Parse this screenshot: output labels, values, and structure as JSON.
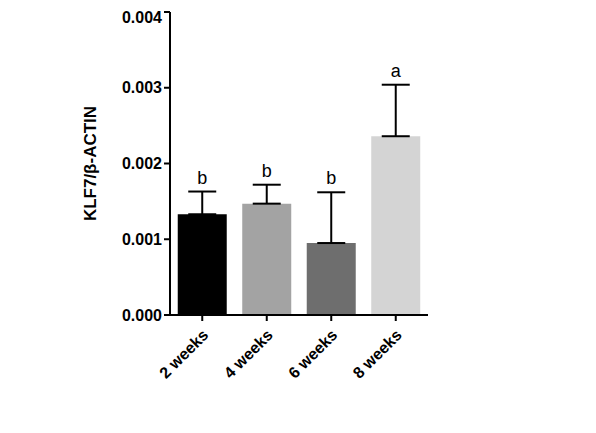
{
  "chart_data": {
    "type": "bar",
    "categories": [
      "2 weeks",
      "4 weeks",
      "6 weeks",
      "8 weeks"
    ],
    "values": [
      0.00133,
      0.00147,
      0.00095,
      0.00236
    ],
    "errors": [
      0.0003,
      0.00025,
      0.00067,
      0.00068
    ],
    "annotations": [
      "b",
      "b",
      "b",
      "a"
    ],
    "colors": [
      "#000000",
      "#a3a3a3",
      "#6e6e6e",
      "#d4d4d4"
    ],
    "y_label": "KLF7/β-ACTIN",
    "ylim": [
      0,
      0.004
    ],
    "yticks": [
      {
        "value": 0,
        "label": "0.000"
      },
      {
        "value": 0.001,
        "label": "0.001"
      },
      {
        "value": 0.002,
        "label": "0.002"
      },
      {
        "value": 0.003,
        "label": "0.003"
      },
      {
        "value": 0.004,
        "label": "0.004"
      }
    ],
    "grid": false
  }
}
